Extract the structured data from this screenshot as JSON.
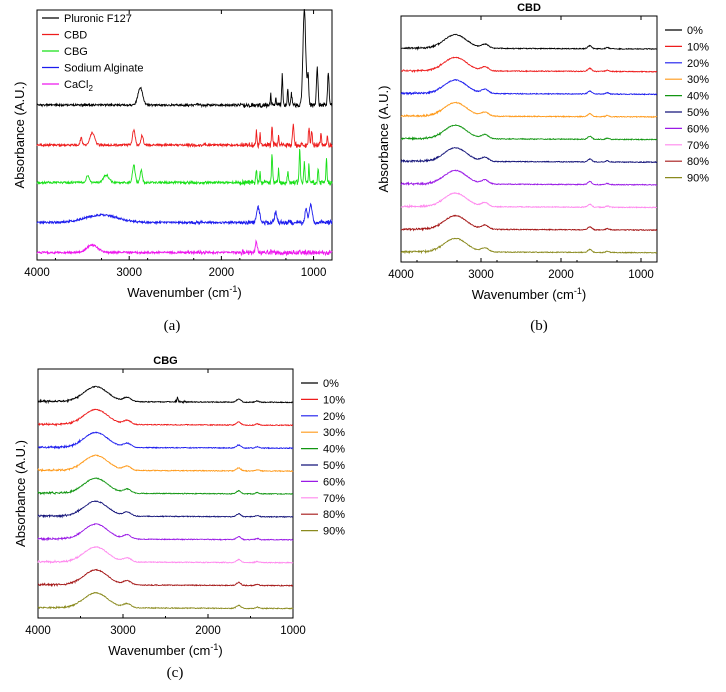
{
  "chart_data": [
    {
      "id": "a",
      "type": "line",
      "title": "",
      "caption": "(a)",
      "xlabel": "Wavenumber (cm",
      "xlabel_sup": "-1",
      "xlabel_end": ")",
      "ylabel": "Absorbance (A.U.)",
      "xlim": [
        4000,
        800
      ],
      "xticks": [
        4000,
        3000,
        2000,
        1000
      ],
      "ylim": [
        0,
        100
      ],
      "legend_position": "top-left",
      "series": [
        {
          "name": "Pluronic F127",
          "sub": "",
          "color": "#000000",
          "baseline": 62,
          "bands": [
            {
              "c": 2880,
              "h": 7,
              "w": 25
            },
            {
              "c": 1465,
              "h": 4,
              "w": 5
            },
            {
              "c": 1410,
              "h": 3,
              "w": 5
            },
            {
              "c": 1340,
              "h": 12,
              "w": 6
            },
            {
              "c": 1280,
              "h": 6,
              "w": 6
            },
            {
              "c": 1240,
              "h": 5,
              "w": 6
            },
            {
              "c": 1100,
              "h": 38,
              "w": 15
            },
            {
              "c": 1060,
              "h": 12,
              "w": 8
            },
            {
              "c": 960,
              "h": 15,
              "w": 8
            },
            {
              "c": 840,
              "h": 13,
              "w": 8
            }
          ]
        },
        {
          "name": "CBD",
          "sub": "",
          "color": "#ee1c1c",
          "baseline": 46,
          "bands": [
            {
              "c": 3520,
              "h": 3,
              "w": 10
            },
            {
              "c": 3400,
              "h": 5,
              "w": 25
            },
            {
              "c": 2950,
              "h": 6,
              "w": 14
            },
            {
              "c": 2860,
              "h": 4,
              "w": 12
            },
            {
              "c": 1620,
              "h": 6,
              "w": 6
            },
            {
              "c": 1580,
              "h": 5,
              "w": 5
            },
            {
              "c": 1450,
              "h": 8,
              "w": 6
            },
            {
              "c": 1380,
              "h": 4,
              "w": 5
            },
            {
              "c": 1220,
              "h": 8,
              "w": 8
            },
            {
              "c": 1050,
              "h": 7,
              "w": 6
            },
            {
              "c": 1020,
              "h": 6,
              "w": 6
            },
            {
              "c": 920,
              "h": 5,
              "w": 6
            },
            {
              "c": 850,
              "h": 4,
              "w": 6
            }
          ]
        },
        {
          "name": "CBG",
          "sub": "",
          "color": "#18e018",
          "baseline": 31,
          "bands": [
            {
              "c": 3450,
              "h": 3,
              "w": 15
            },
            {
              "c": 3250,
              "h": 3,
              "w": 30
            },
            {
              "c": 2950,
              "h": 7,
              "w": 14
            },
            {
              "c": 2870,
              "h": 5,
              "w": 12
            },
            {
              "c": 1620,
              "h": 5,
              "w": 6
            },
            {
              "c": 1580,
              "h": 4,
              "w": 5
            },
            {
              "c": 1450,
              "h": 11,
              "w": 6
            },
            {
              "c": 1380,
              "h": 5,
              "w": 5
            },
            {
              "c": 1280,
              "h": 4,
              "w": 6
            },
            {
              "c": 1150,
              "h": 14,
              "w": 6
            },
            {
              "c": 1100,
              "h": 8,
              "w": 6
            },
            {
              "c": 1050,
              "h": 7,
              "w": 5
            },
            {
              "c": 950,
              "h": 5,
              "w": 6
            },
            {
              "c": 860,
              "h": 9,
              "w": 6
            }
          ]
        },
        {
          "name": "Sodium Alginate",
          "sub": "",
          "color": "#1c1cee",
          "baseline": 15,
          "bands": [
            {
              "c": 3300,
              "h": 3,
              "w": 180
            },
            {
              "c": 1600,
              "h": 6,
              "w": 18
            },
            {
              "c": 1410,
              "h": 4,
              "w": 12
            },
            {
              "c": 1080,
              "h": 5,
              "w": 14
            },
            {
              "c": 1030,
              "h": 7,
              "w": 14
            }
          ]
        },
        {
          "name": "CaCl",
          "sub": "2",
          "color": "#ee18ee",
          "baseline": 3,
          "bands": [
            {
              "c": 3400,
              "h": 3,
              "w": 60
            },
            {
              "c": 1620,
              "h": 4,
              "w": 10
            }
          ]
        }
      ]
    },
    {
      "id": "b",
      "type": "line",
      "title": "CBD",
      "caption": "(b)",
      "xlabel": "Wavenumber (cm",
      "xlabel_sup": "-1",
      "xlabel_end": ")",
      "ylabel": "Absorbance (A.U.)",
      "xlim": [
        4000,
        800
      ],
      "xticks": [
        4000,
        3000,
        2000,
        1000
      ],
      "ylim": [
        0,
        100
      ],
      "legend_position": "right",
      "band_height": 5.5,
      "series": [
        {
          "name": "0%",
          "color": "#000000"
        },
        {
          "name": "10%",
          "color": "#ee1c1c"
        },
        {
          "name": "20%",
          "color": "#1c1cee"
        },
        {
          "name": "30%",
          "color": "#ff9a1a"
        },
        {
          "name": "40%",
          "color": "#129612"
        },
        {
          "name": "50%",
          "color": "#15157a"
        },
        {
          "name": "60%",
          "color": "#9a1ae6"
        },
        {
          "name": "70%",
          "color": "#ff88ee"
        },
        {
          "name": "80%",
          "color": "#a51818"
        },
        {
          "name": "90%",
          "color": "#8a8a1e"
        }
      ]
    },
    {
      "id": "c",
      "type": "line",
      "title": "CBG",
      "caption": "(c)",
      "xlabel": "Wavenumber (cm",
      "xlabel_sup": "-1",
      "xlabel_end": ")",
      "ylabel": "Absorbance (A.U.)",
      "xlim": [
        4000,
        1000
      ],
      "xticks": [
        4000,
        3000,
        2000,
        1000
      ],
      "ylim": [
        0,
        100
      ],
      "legend_position": "right",
      "band_height": 6,
      "series": [
        {
          "name": "0%",
          "color": "#000000"
        },
        {
          "name": "10%",
          "color": "#ee1c1c"
        },
        {
          "name": "20%",
          "color": "#1c1cee"
        },
        {
          "name": "30%",
          "color": "#ff9a1a"
        },
        {
          "name": "40%",
          "color": "#129612"
        },
        {
          "name": "50%",
          "color": "#15157a"
        },
        {
          "name": "60%",
          "color": "#9a1ae6"
        },
        {
          "name": "70%",
          "color": "#ff88ee"
        },
        {
          "name": "80%",
          "color": "#a51818"
        },
        {
          "name": "90%",
          "color": "#8a8a1e"
        }
      ]
    }
  ]
}
